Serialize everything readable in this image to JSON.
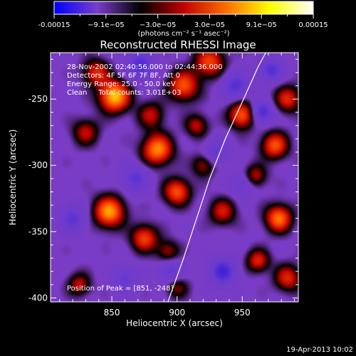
{
  "chart_data": {
    "type": "heatmap",
    "title": "Reconstructed RHESSI Image",
    "xlabel": "Heliocentric X (arcsec)",
    "ylabel": "Heliocentric Y (arcsec)",
    "xlim": [
      803,
      993
    ],
    "ylim": [
      -403,
      -215
    ],
    "xticks": [
      850,
      900,
      950
    ],
    "yticks": [
      -250,
      -300,
      -350,
      -400
    ],
    "colorbar": {
      "colors": [
        "#0000ff",
        "#7a3ec8",
        "#000000",
        "#c00000",
        "#ff7000",
        "#ffff00",
        "#ffffff"
      ],
      "range": [
        -0.00015,
        0.00015
      ],
      "tick_labels": [
        "-0.00015",
        "−9.1e−05",
        "−3.0e−05",
        "3.0e−05",
        "9.1e−05",
        "0.00015"
      ],
      "unit_label": "(photons cm⁻² s⁻¹ asec⁻²)"
    },
    "info_lines": [
      "28-Nov-2002 02:40:56.000 to 02:44:36.000",
      "Detectors: 4F 5F 6F 7F 8F, Att 0",
      "Energy Range: 25.0 - 50.0 keV",
      "Clean     Total counts: 3.01E+03"
    ],
    "peak_label": "Position of Peak = [851, -248]",
    "limb_curve": [
      [
        893,
        -403
      ],
      [
        905,
        -370
      ],
      [
        915,
        -340
      ],
      [
        925,
        -310
      ],
      [
        937,
        -280
      ],
      [
        951,
        -250
      ],
      [
        962,
        -226
      ],
      [
        968,
        -215
      ]
    ],
    "sources": [
      {
        "x": 852,
        "y": -248,
        "amp": 1.0,
        "sig": 8
      },
      {
        "x": 838,
        "y": -230,
        "amp": 0.55,
        "sig": 7
      },
      {
        "x": 880,
        "y": -262,
        "amp": 0.45,
        "sig": 7
      },
      {
        "x": 905,
        "y": -240,
        "amp": 0.7,
        "sig": 8
      },
      {
        "x": 925,
        "y": -222,
        "amp": 0.65,
        "sig": 8
      },
      {
        "x": 830,
        "y": -275,
        "amp": 0.45,
        "sig": 7
      },
      {
        "x": 885,
        "y": -288,
        "amp": 0.85,
        "sig": 8
      },
      {
        "x": 915,
        "y": -270,
        "amp": 0.45,
        "sig": 6
      },
      {
        "x": 950,
        "y": -262,
        "amp": 0.75,
        "sig": 7
      },
      {
        "x": 985,
        "y": -250,
        "amp": 0.55,
        "sig": 7
      },
      {
        "x": 975,
        "y": -285,
        "amp": 0.7,
        "sig": 7
      },
      {
        "x": 920,
        "y": -300,
        "amp": 0.4,
        "sig": 6
      },
      {
        "x": 960,
        "y": -308,
        "amp": 0.45,
        "sig": 6
      },
      {
        "x": 848,
        "y": -335,
        "amp": 0.9,
        "sig": 8
      },
      {
        "x": 900,
        "y": -320,
        "amp": 0.7,
        "sig": 7
      },
      {
        "x": 875,
        "y": -355,
        "amp": 0.65,
        "sig": 7
      },
      {
        "x": 935,
        "y": -335,
        "amp": 0.5,
        "sig": 7
      },
      {
        "x": 978,
        "y": -340,
        "amp": 0.8,
        "sig": 7
      },
      {
        "x": 962,
        "y": -372,
        "amp": 0.55,
        "sig": 6
      },
      {
        "x": 985,
        "y": -385,
        "amp": 0.55,
        "sig": 7
      },
      {
        "x": 825,
        "y": -390,
        "amp": 0.45,
        "sig": 6
      },
      {
        "x": 893,
        "y": -365,
        "amp": 0.4,
        "sig": 6
      },
      {
        "x": 900,
        "y": -392,
        "amp": 0.35,
        "sig": 6
      }
    ],
    "negatives": [
      {
        "x": 872,
        "y": -225,
        "amp": 0.55,
        "sig": 7
      },
      {
        "x": 945,
        "y": -240,
        "amp": 0.5,
        "sig": 7
      },
      {
        "x": 972,
        "y": -228,
        "amp": 0.5,
        "sig": 6
      },
      {
        "x": 965,
        "y": -260,
        "amp": 0.6,
        "sig": 6
      },
      {
        "x": 868,
        "y": -310,
        "amp": 0.45,
        "sig": 7
      },
      {
        "x": 930,
        "y": -290,
        "amp": 0.4,
        "sig": 6
      },
      {
        "x": 950,
        "y": -315,
        "amp": 0.35,
        "sig": 6
      },
      {
        "x": 820,
        "y": -340,
        "amp": 0.45,
        "sig": 7
      },
      {
        "x": 935,
        "y": -380,
        "amp": 0.6,
        "sig": 7
      },
      {
        "x": 895,
        "y": -380,
        "amp": 0.45,
        "sig": 6
      },
      {
        "x": 860,
        "y": -385,
        "amp": 0.4,
        "sig": 6
      }
    ]
  },
  "footer": {
    "timestamp": "19-Apr-2013 10:02"
  }
}
